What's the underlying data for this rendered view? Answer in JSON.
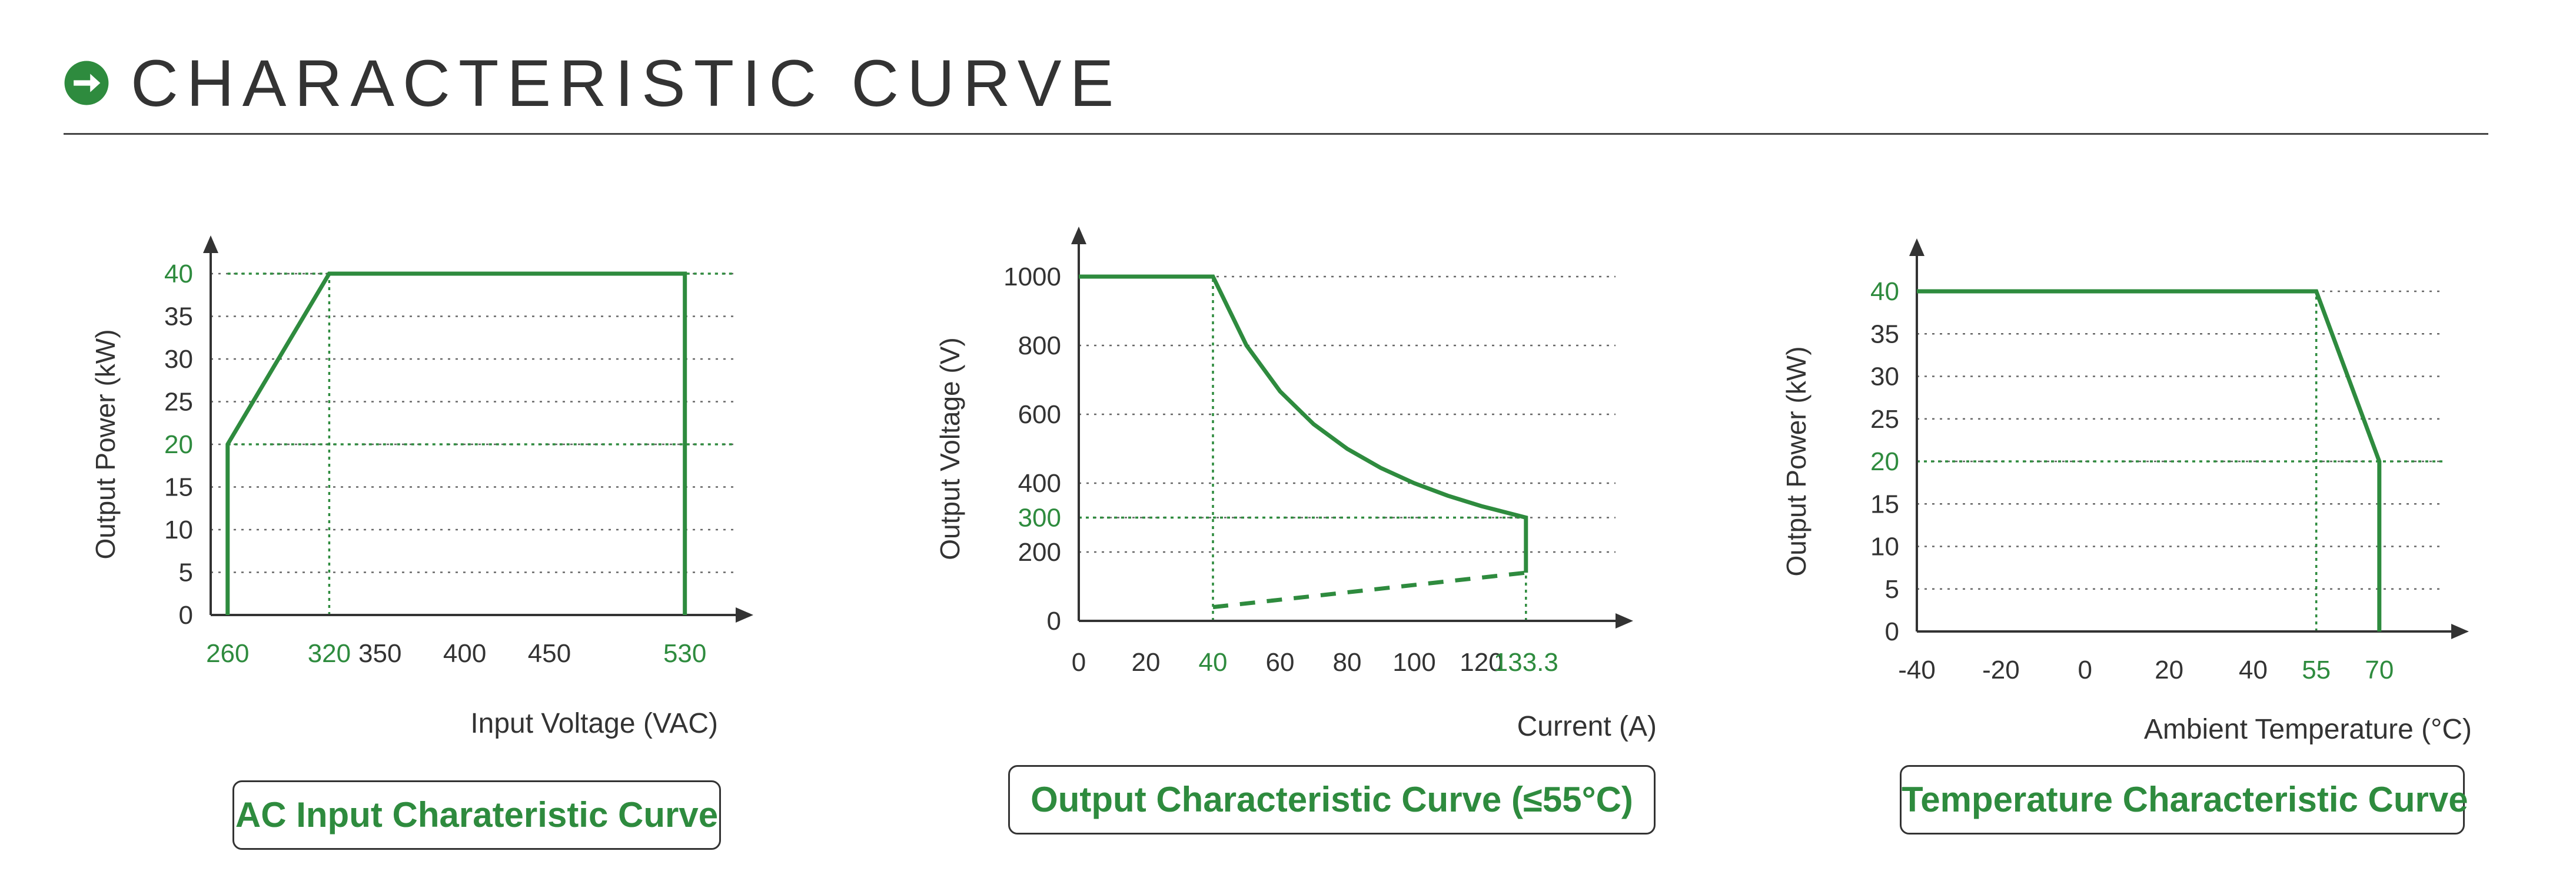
{
  "header": {
    "title": "CHARACTERISTIC CURVE",
    "icon": "arrow-right-circle-icon"
  },
  "colors": {
    "accent": "#2e8b3e",
    "text": "#333333",
    "grid": "#666666"
  },
  "chart_data": [
    {
      "type": "line",
      "caption": "AC Input Charateristic Curve",
      "xlabel": "Input Voltage (VAC)",
      "ylabel": "Output Power (kW)",
      "xticks": [
        260,
        320,
        350,
        400,
        450,
        530
      ],
      "xticks_highlight": [
        260,
        320,
        530
      ],
      "yticks": [
        0,
        5,
        10,
        15,
        20,
        25,
        30,
        35,
        40
      ],
      "yticks_highlight": [
        20,
        40
      ],
      "xlim": [
        250,
        560
      ],
      "ylim": [
        0,
        45
      ],
      "grid": true,
      "series": [
        {
          "x": [
            260,
            260,
            320,
            530,
            530
          ],
          "y": [
            0,
            20,
            40,
            40,
            0
          ]
        }
      ],
      "guides": {
        "h": [
          {
            "y": 20,
            "x0": 260,
            "x1": 560
          },
          {
            "y": 40,
            "x0": 260,
            "x1": 560
          }
        ],
        "v": [
          {
            "x": 320,
            "y0": 0,
            "y1": 40
          }
        ]
      }
    },
    {
      "type": "line",
      "caption": "Output Characteristic Curve (≤55°C)",
      "xlabel": "Current (A)",
      "ylabel": "Output Voltage (V)",
      "xticks": [
        "0",
        "20",
        "40",
        "60",
        "80",
        "100",
        "120",
        "133.3"
      ],
      "xticks_highlight": [
        "40",
        "133.3"
      ],
      "yticks": [
        0,
        200,
        300,
        400,
        600,
        800,
        1000
      ],
      "yticks_highlight": [
        300
      ],
      "xlim": [
        0,
        160
      ],
      "ylim": [
        0,
        1100
      ],
      "grid": true,
      "series": [
        {
          "x": [
            0,
            40,
            50,
            60,
            70,
            80,
            90,
            100,
            110,
            120,
            133.3,
            133.3
          ],
          "y": [
            1000,
            1000,
            800,
            666.7,
            571.4,
            500,
            444.4,
            400,
            363.6,
            333.3,
            300,
            140
          ]
        },
        {
          "x": [
            40,
            133.3
          ],
          "y": [
            40,
            140
          ],
          "style": "dashed"
        }
      ],
      "guides": {
        "h": [
          {
            "y": 300,
            "x0": 0,
            "x1": 133.3
          }
        ],
        "v": [
          {
            "x": 40,
            "y0": 0,
            "y1": 1000
          },
          {
            "x": 133.3,
            "y0": 0,
            "y1": 300
          }
        ]
      }
    },
    {
      "type": "line",
      "caption": "Temperature Characteristic Curve",
      "xlabel": "Ambient Temperature (°C)",
      "ylabel": "Output Power (kW)",
      "xticks": [
        "-40",
        "-20",
        "0",
        "20",
        "40",
        "55",
        "70"
      ],
      "xticks_highlight": [
        "55",
        "70"
      ],
      "yticks": [
        0,
        5,
        10,
        15,
        20,
        25,
        30,
        35,
        40
      ],
      "yticks_highlight": [
        20,
        40
      ],
      "xlim": [
        -40,
        85
      ],
      "ylim": [
        0,
        45
      ],
      "grid": true,
      "series": [
        {
          "x": [
            -40,
            55,
            70,
            70
          ],
          "y": [
            40,
            40,
            20,
            0
          ]
        }
      ],
      "guides": {
        "h": [
          {
            "y": 20,
            "x0": -40,
            "x1": 85
          }
        ],
        "v": [
          {
            "x": 55,
            "y0": 0,
            "y1": 40
          }
        ]
      }
    }
  ]
}
